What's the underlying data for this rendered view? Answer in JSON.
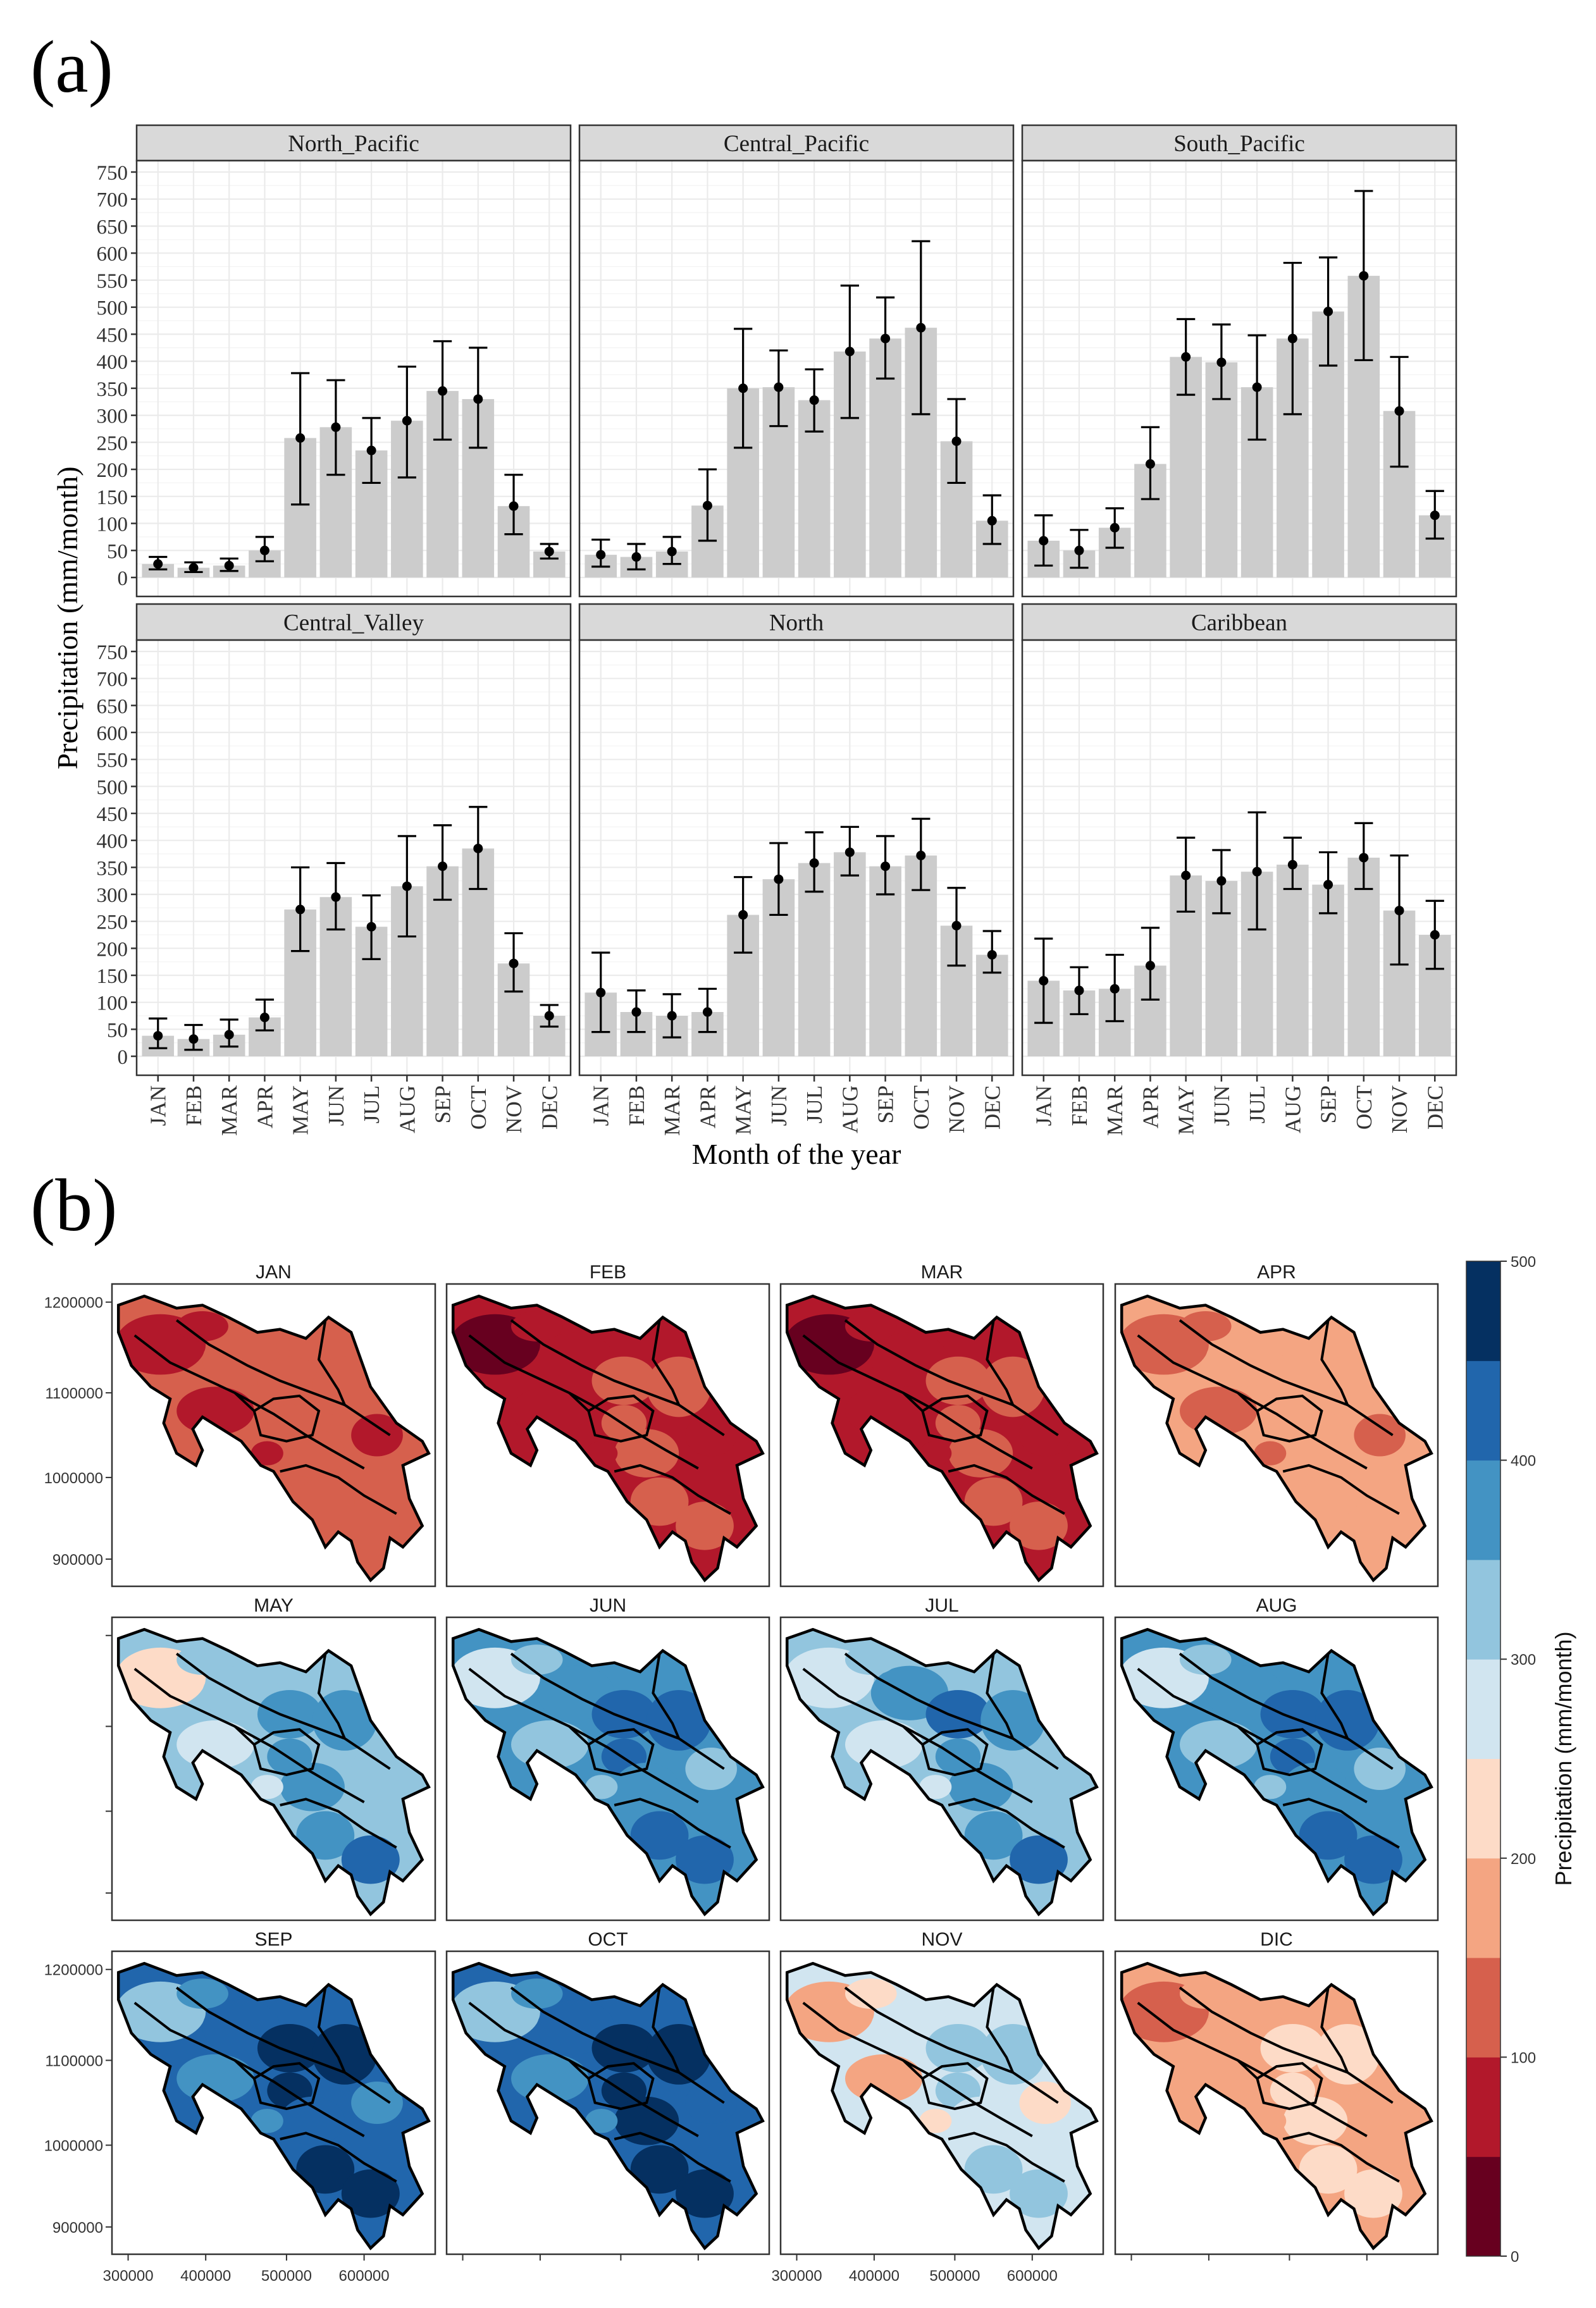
{
  "panel_a_label": "(a)",
  "panel_b_label": "(b)",
  "chart_data": [
    {
      "type": "bar",
      "title": "",
      "xlabel": "Month of the year",
      "ylabel": "Precipitation (mm/month)",
      "ylim": [
        0,
        750
      ],
      "yticks": [
        0,
        50,
        100,
        150,
        200,
        250,
        300,
        350,
        400,
        450,
        500,
        550,
        600,
        650,
        700,
        750
      ],
      "categories": [
        "JAN",
        "FEB",
        "MAR",
        "APR",
        "MAY",
        "JUN",
        "JUL",
        "AUG",
        "SEP",
        "OCT",
        "NOV",
        "DEC"
      ],
      "grid": true,
      "bar_color": "#cccccc",
      "facets": [
        {
          "name": "North_Pacific",
          "values": [
            25,
            18,
            22,
            50,
            258,
            278,
            235,
            290,
            345,
            330,
            132,
            48
          ],
          "err_low": [
            15,
            10,
            12,
            30,
            135,
            190,
            175,
            185,
            255,
            240,
            80,
            35
          ],
          "err_high": [
            38,
            28,
            35,
            75,
            378,
            365,
            295,
            390,
            437,
            425,
            190,
            62
          ]
        },
        {
          "name": "Central_Pacific",
          "values": [
            42,
            38,
            48,
            133,
            350,
            352,
            328,
            418,
            442,
            462,
            252,
            105
          ],
          "err_low": [
            20,
            15,
            25,
            68,
            240,
            280,
            270,
            295,
            368,
            302,
            175,
            62
          ],
          "err_high": [
            70,
            62,
            75,
            200,
            460,
            420,
            385,
            540,
            518,
            622,
            330,
            152
          ]
        },
        {
          "name": "South_Pacific",
          "values": [
            68,
            50,
            92,
            210,
            408,
            398,
            352,
            442,
            492,
            558,
            308,
            115
          ],
          "err_low": [
            22,
            18,
            55,
            145,
            338,
            330,
            255,
            302,
            392,
            402,
            205,
            72
          ],
          "err_high": [
            115,
            88,
            128,
            278,
            478,
            468,
            448,
            582,
            592,
            715,
            408,
            160
          ]
        },
        {
          "name": "Central_Valley",
          "values": [
            38,
            32,
            40,
            72,
            272,
            295,
            240,
            315,
            352,
            385,
            172,
            75
          ],
          "err_low": [
            15,
            12,
            18,
            48,
            195,
            235,
            180,
            222,
            290,
            310,
            120,
            55
          ],
          "err_high": [
            70,
            58,
            68,
            105,
            350,
            358,
            298,
            408,
            428,
            462,
            228,
            95
          ]
        },
        {
          "name": "North",
          "values": [
            118,
            82,
            75,
            82,
            262,
            328,
            358,
            378,
            352,
            372,
            242,
            188
          ],
          "err_low": [
            45,
            45,
            35,
            45,
            192,
            262,
            305,
            335,
            300,
            308,
            168,
            155
          ],
          "err_high": [
            192,
            122,
            115,
            125,
            332,
            395,
            415,
            425,
            408,
            440,
            312,
            232
          ]
        },
        {
          "name": "Caribbean",
          "values": [
            140,
            122,
            125,
            168,
            335,
            325,
            342,
            355,
            318,
            368,
            270,
            225
          ],
          "err_low": [
            62,
            78,
            65,
            105,
            268,
            265,
            235,
            310,
            265,
            310,
            170,
            162
          ],
          "err_high": [
            218,
            165,
            188,
            238,
            405,
            382,
            452,
            405,
            378,
            432,
            372,
            288
          ]
        }
      ]
    },
    {
      "type": "heatmap",
      "title": "",
      "colorbar_label": "Precipitation (mm/month)",
      "colorbar_range": [
        0,
        500
      ],
      "colorbar_ticks": [
        0,
        100,
        200,
        300,
        400,
        500
      ],
      "colorbar_colors": [
        "#67001f",
        "#b2182b",
        "#d6604d",
        "#f4a582",
        "#fddbc7",
        "#d1e5f0",
        "#92c5de",
        "#4393c3",
        "#2166ac",
        "#053061"
      ],
      "xticks": [
        300000,
        400000,
        500000,
        600000
      ],
      "yticks": [
        900000,
        1000000,
        1100000,
        1200000
      ],
      "months": [
        {
          "name": "JAN",
          "mean_level": 1.6
        },
        {
          "name": "FEB",
          "mean_level": 1.3
        },
        {
          "name": "MAR",
          "mean_level": 1.2
        },
        {
          "name": "APR",
          "mean_level": 2.6
        },
        {
          "name": "MAY",
          "mean_level": 6.0
        },
        {
          "name": "JUN",
          "mean_level": 6.7
        },
        {
          "name": "JUL",
          "mean_level": 6.3
        },
        {
          "name": "AUG",
          "mean_level": 6.8
        },
        {
          "name": "SEP",
          "mean_level": 7.6
        },
        {
          "name": "OCT",
          "mean_level": 7.9
        },
        {
          "name": "NOV",
          "mean_level": 4.6
        },
        {
          "name": "DIC",
          "mean_level": 3.3
        }
      ]
    }
  ]
}
